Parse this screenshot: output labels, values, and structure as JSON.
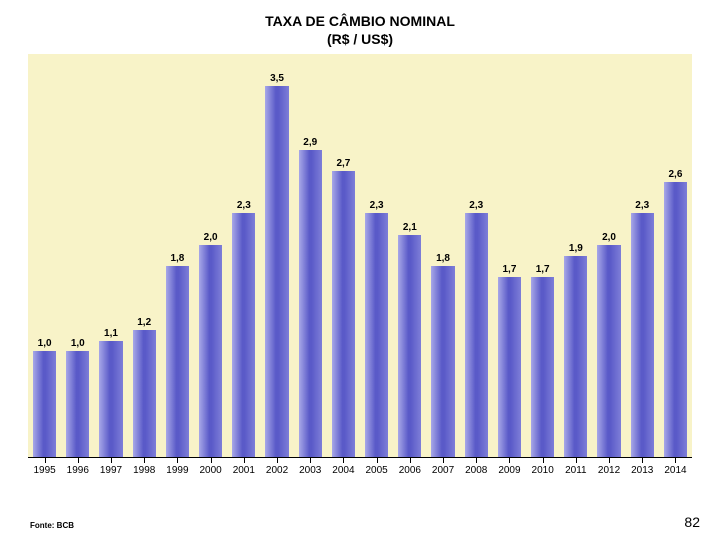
{
  "title_line1": "TAXA DE CÂMBIO NOMINAL",
  "title_line2": "(R$ / US$)",
  "chart": {
    "type": "bar",
    "background_color": "#f8f3c8",
    "axis_color": "#000000",
    "bar_gradient_from": "#a8a8e8",
    "bar_gradient_mid": "#5a5ac8",
    "bar_gradient_to": "#7e7ed8",
    "value_label_fontsize": 10,
    "xtick_fontsize": 10,
    "ymax": 3.8,
    "ymin": 0,
    "bar_width_pct": 70,
    "categories": [
      "1995",
      "1996",
      "1997",
      "1998",
      "1999",
      "2000",
      "2001",
      "2002",
      "2003",
      "2004",
      "2005",
      "2006",
      "2007",
      "2008",
      "2009",
      "2010",
      "2011",
      "2012",
      "2013",
      "2014"
    ],
    "values": [
      1.0,
      1.0,
      1.1,
      1.2,
      1.8,
      2.0,
      2.3,
      3.5,
      2.9,
      2.7,
      2.3,
      2.1,
      1.8,
      2.3,
      1.7,
      1.7,
      1.9,
      2.0,
      2.3,
      2.6
    ],
    "value_labels": [
      "1,0",
      "1,0",
      "1,1",
      "1,2",
      "1,8",
      "2,0",
      "2,3",
      "3,5",
      "2,9",
      "2,7",
      "2,3",
      "2,1",
      "1,8",
      "2,3",
      "1,7",
      "1,7",
      "1,9",
      "2,0",
      "2,3",
      "2,6"
    ]
  },
  "source_label": "Fonte: BCB",
  "page_number": "82"
}
